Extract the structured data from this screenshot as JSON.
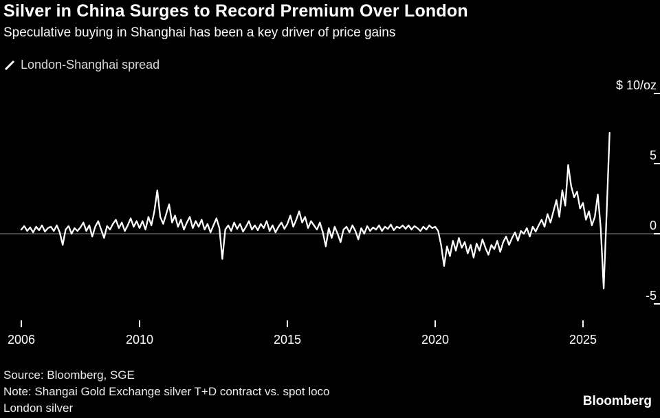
{
  "header": {
    "title": "Silver in China Surges to Record Premium Over London",
    "subtitle": "Speculative buying in Shanghai has been a key driver of price gains"
  },
  "legend": {
    "label": "London-Shanghai spread"
  },
  "footer": {
    "source": "Source: Bloomberg, SGE",
    "note_line1": "Note: Shangai Gold Exchange silver T+D contract vs. spot loco",
    "note_line2": "London silver",
    "brand": "Bloomberg"
  },
  "colors": {
    "background": "#000000",
    "line": "#ffffff",
    "zero_line": "#6f6f6f",
    "tick_text": "#ffffff",
    "muted_text": "#d8d8d8"
  },
  "chart_data": {
    "type": "line",
    "title": "London-Shanghai spread",
    "ylabel": "$/oz",
    "xlabel": "",
    "unit_label": "$ 10/oz",
    "xlim": [
      2006,
      2026.2
    ],
    "ylim": [
      -6.5,
      10.5
    ],
    "grid": false,
    "zero_line": true,
    "legend_position": "top-left",
    "yticks": [
      {
        "value": 10,
        "label": "$ 10/oz"
      },
      {
        "value": 5,
        "label": "5"
      },
      {
        "value": 0,
        "label": "0"
      },
      {
        "value": -5,
        "label": "-5"
      }
    ],
    "xticks": [
      {
        "value": 2006,
        "label": "2006"
      },
      {
        "value": 2010,
        "label": "2010"
      },
      {
        "value": 2015,
        "label": "2015"
      },
      {
        "value": 2020,
        "label": "2020"
      },
      {
        "value": 2025,
        "label": "2025"
      }
    ],
    "series": [
      {
        "name": "London-Shanghai spread",
        "x_start": 2006.0,
        "x_step": 0.1,
        "values": [
          0.3,
          0.55,
          0.2,
          0.45,
          0.1,
          0.5,
          0.25,
          0.6,
          0.15,
          0.4,
          0.5,
          0.2,
          0.6,
          0.1,
          -0.8,
          0.3,
          0.55,
          0.0,
          0.4,
          0.2,
          0.45,
          0.8,
          0.2,
          0.6,
          -0.2,
          0.5,
          0.9,
          0.3,
          -0.3,
          0.55,
          0.3,
          0.7,
          1.0,
          0.4,
          0.8,
          0.2,
          0.6,
          1.1,
          0.5,
          0.9,
          0.4,
          0.9,
          0.3,
          1.2,
          0.6,
          1.6,
          3.1,
          1.2,
          0.7,
          1.4,
          2.1,
          0.8,
          1.3,
          0.5,
          1.0,
          0.3,
          0.8,
          1.2,
          0.4,
          0.9,
          0.5,
          1.0,
          0.3,
          0.7,
          0.1,
          0.6,
          1.1,
          0.4,
          -1.8,
          0.3,
          0.6,
          0.2,
          0.8,
          0.35,
          0.7,
          0.15,
          0.5,
          0.9,
          0.3,
          0.6,
          0.25,
          0.7,
          0.4,
          0.9,
          0.2,
          0.6,
          0.1,
          0.5,
          0.8,
          0.35,
          0.7,
          1.3,
          0.5,
          1.0,
          1.6,
          0.8,
          1.2,
          0.4,
          0.9,
          0.6,
          0.3,
          0.8,
          0.1,
          -0.9,
          0.4,
          -0.3,
          0.5,
          0.0,
          -0.6,
          0.3,
          0.5,
          0.1,
          0.6,
          0.2,
          -0.4,
          0.4,
          0.0,
          0.55,
          0.2,
          0.45,
          0.3,
          0.6,
          0.2,
          0.5,
          0.35,
          0.65,
          0.25,
          0.5,
          0.4,
          0.6,
          0.35,
          0.6,
          0.3,
          0.55,
          0.4,
          0.2,
          0.5,
          0.3,
          0.6,
          0.4,
          0.5,
          0.2,
          -0.8,
          -2.3,
          -0.9,
          -1.6,
          -0.5,
          -1.2,
          -0.3,
          -1.0,
          -0.6,
          -1.4,
          -0.8,
          -1.7,
          -0.7,
          -1.2,
          -0.4,
          -1.0,
          -1.5,
          -0.8,
          -1.1,
          -0.5,
          -1.3,
          -0.6,
          -0.2,
          -0.8,
          -0.3,
          0.1,
          -0.5,
          0.2,
          0.0,
          0.4,
          -0.2,
          0.5,
          0.15,
          0.6,
          1.0,
          0.5,
          1.4,
          0.8,
          1.6,
          2.4,
          1.2,
          3.1,
          2.0,
          4.9,
          3.4,
          2.6,
          3.0,
          1.8,
          2.2,
          1.0,
          1.6,
          0.6,
          1.2,
          2.8,
          0.4,
          -3.9,
          1.5,
          7.2
        ]
      }
    ]
  }
}
